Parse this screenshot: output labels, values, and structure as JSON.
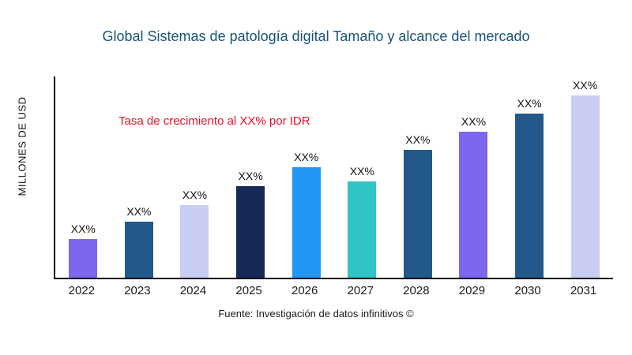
{
  "title": "Global Sistemas de patología digital Tamaño y alcance del mercado",
  "ylabel": "MILLONES DE USD",
  "annotation": "Tasa de crecimiento al XX% por IDR",
  "source": "Fuente: Investigación de datos infinitivos ©",
  "colors": {
    "title": "#1a5276",
    "annotation": "#e8112d",
    "axis": "#000000"
  },
  "chart_data": {
    "type": "bar",
    "title": "Global Sistemas de patología digital Tamaño y alcance del mercado",
    "xlabel": "",
    "ylabel": "MILLONES DE USD",
    "categories": [
      "2022",
      "2023",
      "2024",
      "2025",
      "2026",
      "2027",
      "2028",
      "2029",
      "2030",
      "2031"
    ],
    "values": [
      49,
      71,
      92,
      116,
      140,
      122,
      162,
      185,
      208,
      231
    ],
    "bar_labels": [
      "XX%",
      "XX%",
      "XX%",
      "XX%",
      "XX%",
      "XX%",
      "XX%",
      "XX%",
      "XX%",
      "XX%"
    ],
    "bar_colors": [
      "#7b68ee",
      "#23588a",
      "#c9cdf4",
      "#172a56",
      "#2196f3",
      "#2fc4c6",
      "#23588a",
      "#7b68ee",
      "#23588a",
      "#c9cdf4"
    ],
    "ylim": [
      0,
      255
    ],
    "grid": false,
    "legend": false,
    "annotation": "Tasa de crecimiento al XX% por IDR",
    "source": "Fuente: Investigación de datos infinitivos ©"
  }
}
